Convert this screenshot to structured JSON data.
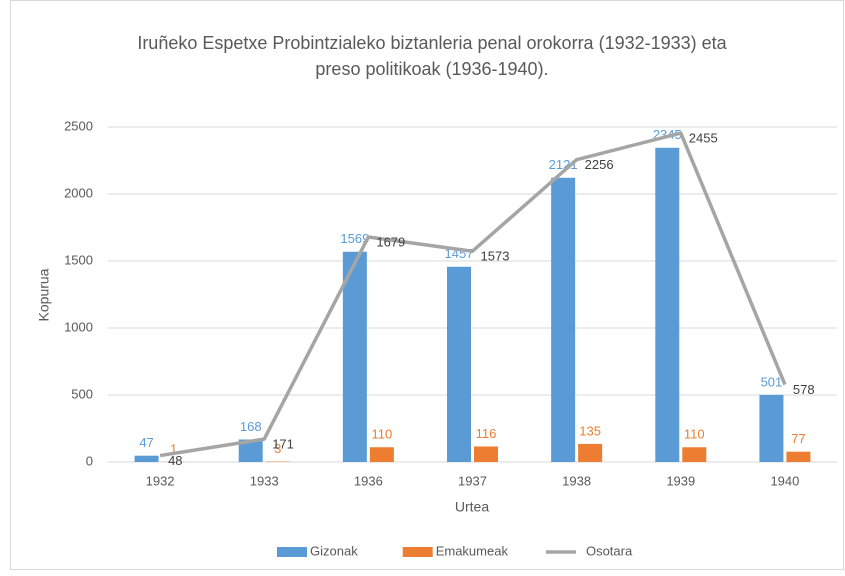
{
  "chart_data": {
    "type": "bar",
    "title": [
      "Iruñeko Espetxe Probintzialeko biztanleria penal orokorra (1932-1933) eta",
      "preso politikoak (1936-1940)."
    ],
    "x_label": "Urtea",
    "y_label": "Kopurua",
    "categories": [
      "1932",
      "1933",
      "1936",
      "1937",
      "1938",
      "1939",
      "1940"
    ],
    "series": [
      {
        "name": "Gizonak",
        "type": "bar",
        "color": "#5b9bd5",
        "values": [
          47,
          168,
          1569,
          1457,
          2121,
          2345,
          501
        ]
      },
      {
        "name": "Emakumeak",
        "type": "bar",
        "color": "#ed7d31",
        "values": [
          1,
          3,
          110,
          116,
          135,
          110,
          77
        ]
      },
      {
        "name": "Osotara",
        "type": "line",
        "color": "#a5a5a5",
        "values": [
          48,
          171,
          1679,
          1573,
          2256,
          2455,
          578
        ]
      }
    ],
    "ylim": [
      0,
      2500
    ],
    "yticks": [
      0,
      500,
      1000,
      1500,
      2000,
      2500
    ],
    "grid": true,
    "legend": "bottom"
  }
}
